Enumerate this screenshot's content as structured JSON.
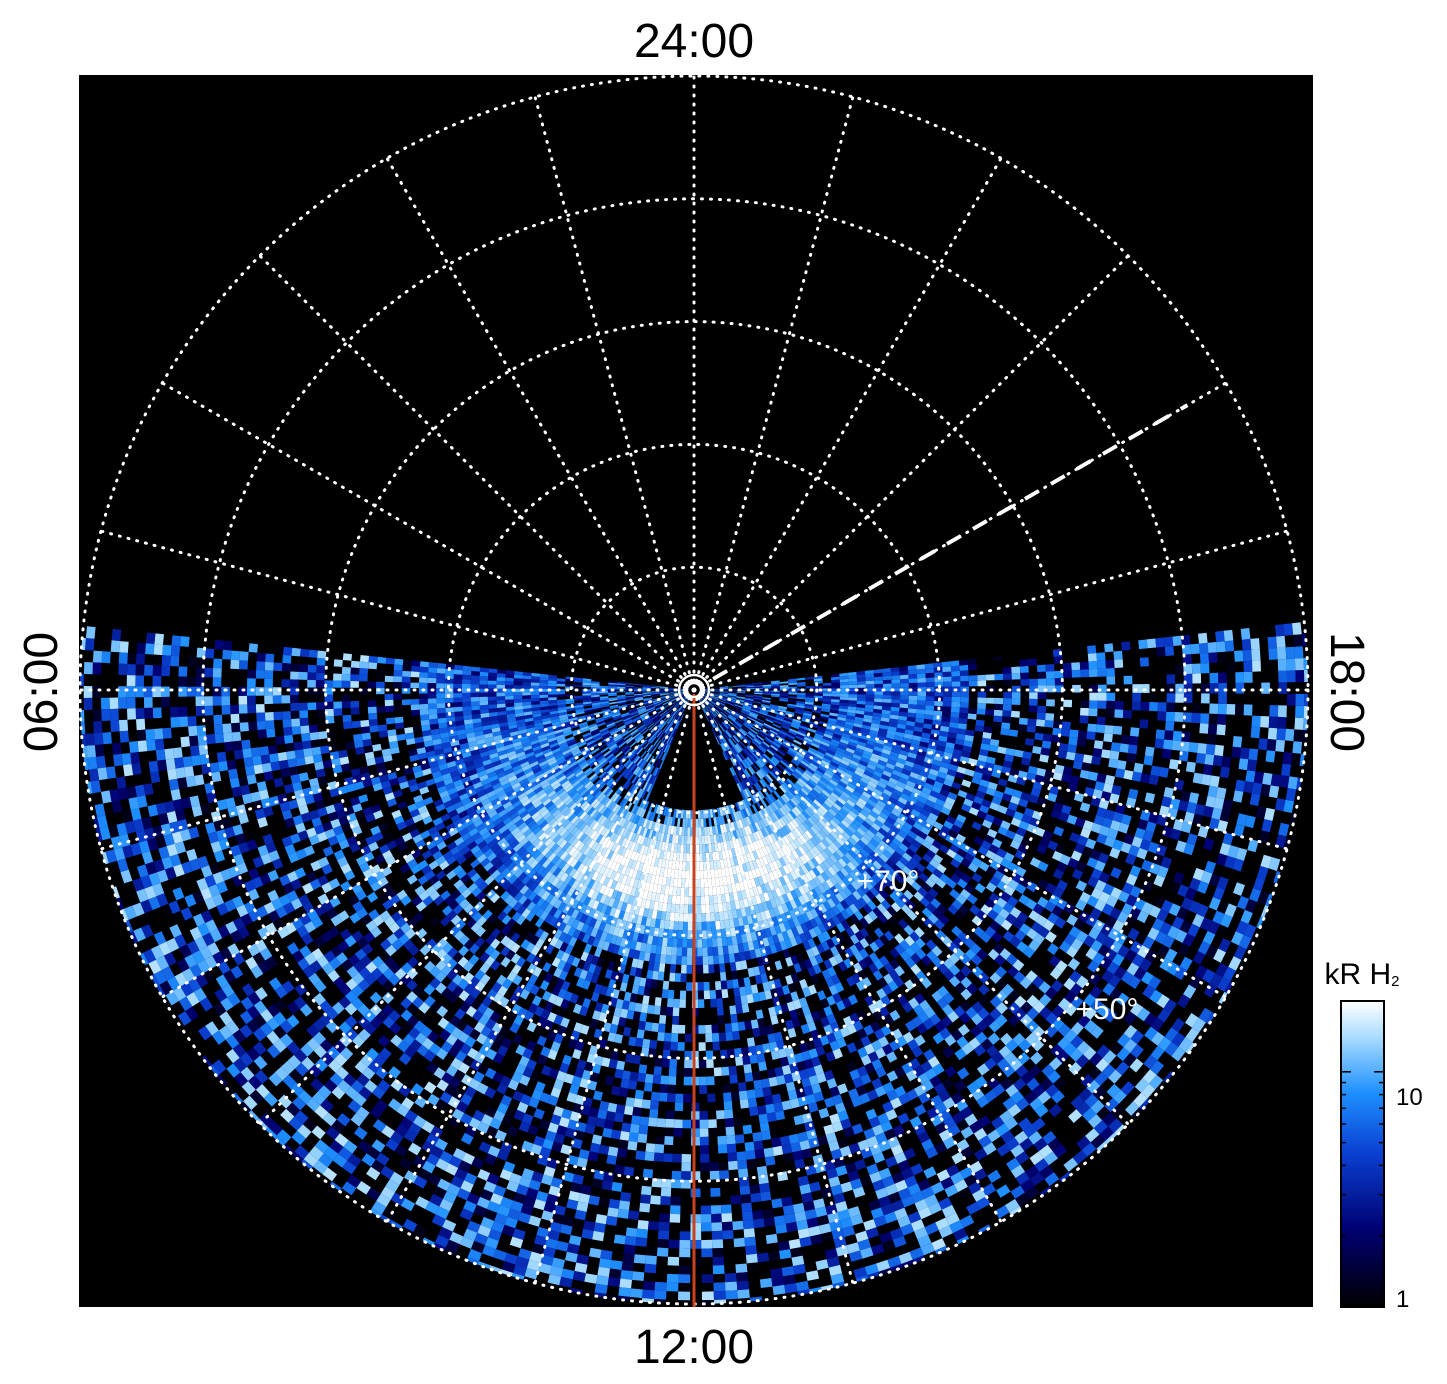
{
  "chart_data": {
    "type": "heatmap",
    "projection": "polar",
    "local_time_labels": {
      "top": "24:00",
      "bottom": "12:00",
      "left": "06:00",
      "right": "18:00"
    },
    "latitude_labels": [
      "+70°",
      "+50°"
    ],
    "latitude_grid_deg": [
      90,
      80,
      70,
      60,
      50,
      40
    ],
    "local_time_grid_hours": [
      0,
      1,
      2,
      3,
      4,
      5,
      6,
      7,
      8,
      9,
      10,
      11,
      12,
      13,
      14,
      15,
      16,
      17,
      18,
      19,
      20,
      21,
      22,
      23
    ],
    "grid": "dotted",
    "background": "#000000",
    "meridian_line": {
      "local_time": "12:00",
      "color": "#c8421e"
    },
    "dashed_line": {
      "local_time_hours": 20
    },
    "auroral_oval": {
      "peak_latitude_deg": 75,
      "peak_local_time_hours": 12,
      "peak_value_kR": 20
    },
    "colorbar": {
      "title_main": "kR H",
      "title_sub": "2",
      "scale": "log",
      "range": [
        1,
        20
      ],
      "tick_labels": [
        "10",
        "1"
      ],
      "tick_values": [
        10,
        1
      ],
      "colors": [
        "#000000",
        "#000070",
        "#0a3fd0",
        "#1e90ff",
        "#a8dcff",
        "#ffffff"
      ]
    }
  }
}
